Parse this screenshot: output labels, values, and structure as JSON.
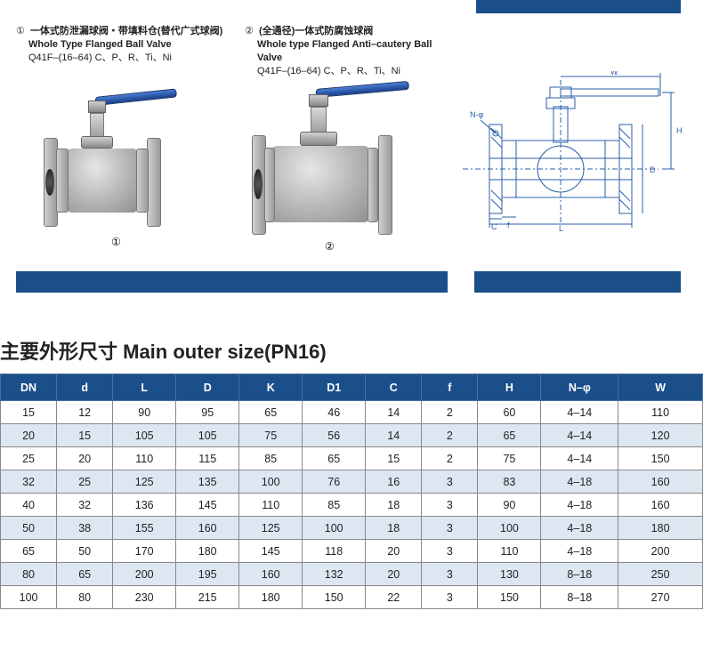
{
  "topbar_color": "#1a4f8a",
  "product1": {
    "num": "①",
    "cn": "一体式防泄漏球阀・带填料仓(替代广式球阀)",
    "en": "Whole Type Flanged Ball Valve",
    "model": "Q41F–(16–64) C、P、R、Ti、Ni",
    "bottom_num": "①"
  },
  "product2": {
    "num": "②",
    "cn": "(全通径)一体式防腐蚀球阀",
    "en": "Whole type Flanged Anti–cautery Ball Valve",
    "model": "Q41F–(16–64) C、P、R、Ti、Ni",
    "bottom_num": "②"
  },
  "diagram_labels": {
    "W": "W",
    "H": "H",
    "L": "L",
    "C": "C",
    "f": "f",
    "d": "d",
    "D": "D",
    "D1": "D1",
    "N": "N-φ"
  },
  "section_title": "主要外形尺寸 Main outer size(PN16)",
  "table": {
    "header_bg": "#1a4f8a",
    "header_fg": "#ffffff",
    "row_alt_bg": "#dde7f2",
    "border_color": "#888888",
    "columns": [
      "DN",
      "d",
      "L",
      "D",
      "K",
      "D1",
      "C",
      "f",
      "H",
      "N–φ",
      "W"
    ],
    "col_widths_pct": [
      8,
      8,
      9,
      9,
      9,
      9,
      8,
      8,
      9,
      11,
      12
    ],
    "rows": [
      [
        "15",
        "12",
        "90",
        "95",
        "65",
        "46",
        "14",
        "2",
        "60",
        "4–14",
        "110"
      ],
      [
        "20",
        "15",
        "105",
        "105",
        "75",
        "56",
        "14",
        "2",
        "65",
        "4–14",
        "120"
      ],
      [
        "25",
        "20",
        "110",
        "115",
        "85",
        "65",
        "15",
        "2",
        "75",
        "4–14",
        "150"
      ],
      [
        "32",
        "25",
        "125",
        "135",
        "100",
        "76",
        "16",
        "3",
        "83",
        "4–18",
        "160"
      ],
      [
        "40",
        "32",
        "136",
        "145",
        "110",
        "85",
        "18",
        "3",
        "90",
        "4–18",
        "160"
      ],
      [
        "50",
        "38",
        "155",
        "160",
        "125",
        "100",
        "18",
        "3",
        "100",
        "4–18",
        "180"
      ],
      [
        "65",
        "50",
        "170",
        "180",
        "145",
        "118",
        "20",
        "3",
        "110",
        "4–18",
        "200"
      ],
      [
        "80",
        "65",
        "200",
        "195",
        "160",
        "132",
        "20",
        "3",
        "130",
        "8–18",
        "250"
      ],
      [
        "100",
        "80",
        "230",
        "215",
        "180",
        "150",
        "22",
        "3",
        "150",
        "8–18",
        "270"
      ]
    ]
  }
}
